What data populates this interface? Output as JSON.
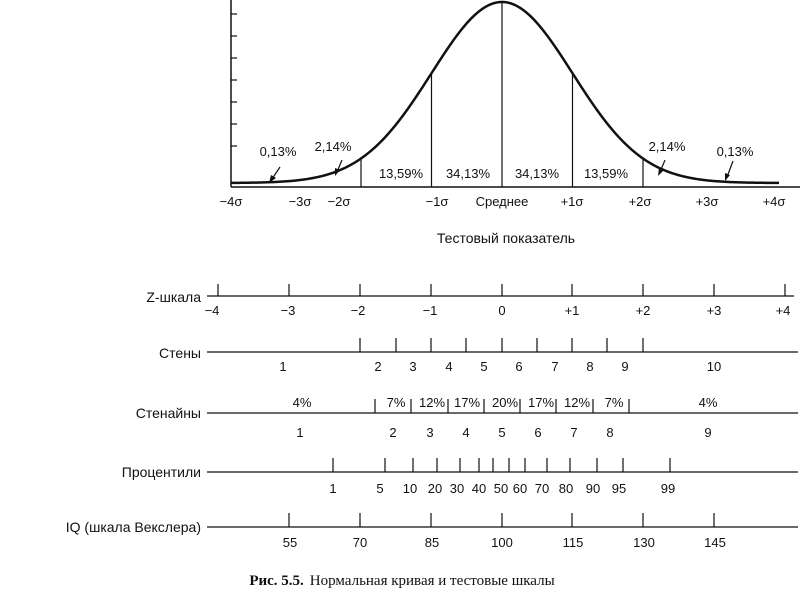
{
  "curve": {
    "pct_labels": [
      "0,13%",
      "2,14%",
      "13,59%",
      "34,13%",
      "34,13%",
      "13,59%",
      "2,14%",
      "0,13%"
    ],
    "sigma_labels": [
      "−4σ",
      "−3σ",
      "−2σ",
      "−1σ",
      "Среднее",
      "+1σ",
      "+2σ",
      "+3σ",
      "+4σ"
    ],
    "axis_title": "Тестовый показатель"
  },
  "scales": {
    "z": {
      "label": "Z-шкала",
      "values": [
        "−4",
        "−3",
        "−2",
        "−1",
        "0",
        "+1",
        "+2",
        "+3",
        "+4"
      ]
    },
    "sten": {
      "label": "Стены",
      "values": [
        "1",
        "2",
        "3",
        "4",
        "5",
        "6",
        "7",
        "8",
        "9",
        "10"
      ]
    },
    "stanine": {
      "label": "Стенайны",
      "values": [
        "1",
        "2",
        "3",
        "4",
        "5",
        "6",
        "7",
        "8",
        "9"
      ],
      "percents": [
        "4%",
        "7%",
        "12%",
        "17%",
        "20%",
        "17%",
        "12%",
        "7%",
        "4%"
      ]
    },
    "percentile": {
      "label": "Процентили",
      "values": [
        "1",
        "5",
        "10",
        "20",
        "30",
        "40",
        "50",
        "60",
        "70",
        "80",
        "90",
        "95",
        "99"
      ]
    },
    "iq": {
      "label": "IQ (шкала Векслера)",
      "values": [
        "55",
        "70",
        "85",
        "100",
        "115",
        "130",
        "145"
      ]
    }
  },
  "caption": {
    "bold": "Рис. 5.5.",
    "text": "Нормальная кривая и тестовые шкалы"
  }
}
